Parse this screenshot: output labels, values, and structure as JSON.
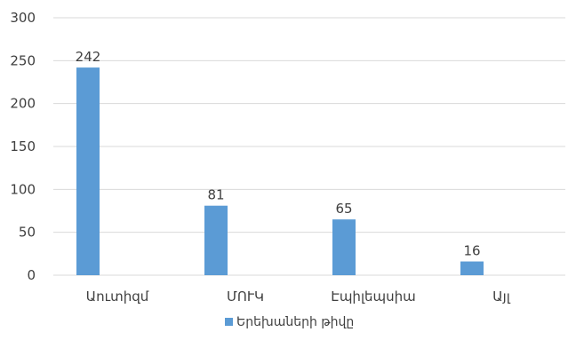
{
  "chart_data": {
    "type": "bar",
    "categories": [
      "Աուտիզմ",
      "ՄՈՒԿ",
      "Էպիլեպսիա",
      "Այլ"
    ],
    "series": [
      {
        "name": "Երեխաների թիվը",
        "values": [
          242,
          81,
          65,
          16
        ],
        "color": "#5b9bd5"
      }
    ],
    "data_labels": [
      "242",
      "81",
      "65",
      "16"
    ],
    "ylim": [
      0,
      300
    ],
    "yticks": [
      0,
      50,
      100,
      150,
      200,
      250,
      300
    ],
    "ytick_labels": [
      "0",
      "50",
      "100",
      "150",
      "200",
      "250",
      "300"
    ],
    "grid": true,
    "legend_position": "bottom",
    "title": "",
    "xlabel": "",
    "ylabel": ""
  }
}
